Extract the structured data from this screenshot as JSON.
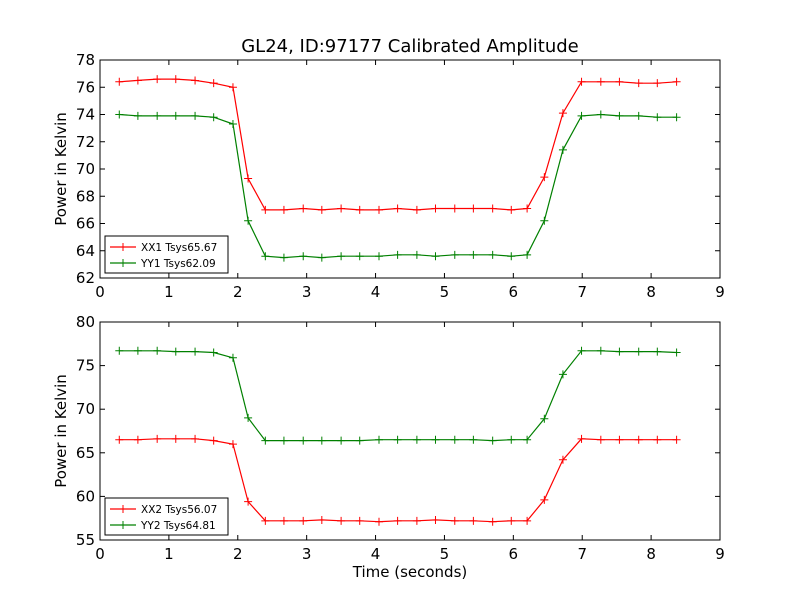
{
  "figure": {
    "title": "GL24, ID:97177 Calibrated Amplitude"
  },
  "chart_data": [
    {
      "type": "line",
      "ylabel": "Power in Kelvin",
      "xlabel": "",
      "xlim": [
        0,
        9
      ],
      "ylim": [
        62,
        78
      ],
      "xticks": [
        "0",
        "1",
        "2",
        "3",
        "4",
        "5",
        "6",
        "7",
        "8",
        "9"
      ],
      "yticks": [
        "62",
        "64",
        "66",
        "68",
        "70",
        "72",
        "74",
        "76",
        "78"
      ],
      "legend_position": "lower-left",
      "x": [
        0.28,
        0.55,
        0.83,
        1.1,
        1.38,
        1.65,
        1.93,
        2.15,
        2.4,
        2.67,
        2.95,
        3.22,
        3.5,
        3.77,
        4.05,
        4.32,
        4.6,
        4.87,
        5.15,
        5.42,
        5.7,
        5.97,
        6.2,
        6.45,
        6.72,
        6.99,
        7.27,
        7.54,
        7.82,
        8.09,
        8.37
      ],
      "series": [
        {
          "name": "XX1 Tsys65.67",
          "color": "#ff0000",
          "values": [
            76.4,
            76.5,
            76.6,
            76.6,
            76.5,
            76.3,
            76.0,
            69.3,
            67.0,
            67.0,
            67.1,
            67.0,
            67.1,
            67.0,
            67.0,
            67.1,
            67.0,
            67.1,
            67.1,
            67.1,
            67.1,
            67.0,
            67.1,
            69.4,
            74.1,
            76.4,
            76.4,
            76.4,
            76.3,
            76.3,
            76.4
          ]
        },
        {
          "name": "YY1 Tsys62.09",
          "color": "#008000",
          "values": [
            74.0,
            73.9,
            73.9,
            73.9,
            73.9,
            73.8,
            73.3,
            66.2,
            63.6,
            63.5,
            63.6,
            63.5,
            63.6,
            63.6,
            63.6,
            63.7,
            63.7,
            63.6,
            63.7,
            63.7,
            63.7,
            63.6,
            63.7,
            66.2,
            71.4,
            73.9,
            74.0,
            73.9,
            73.9,
            73.8,
            73.8
          ]
        }
      ]
    },
    {
      "type": "line",
      "ylabel": "Power in Kelvin",
      "xlabel": "Time (seconds)",
      "xlim": [
        0,
        9
      ],
      "ylim": [
        55,
        80
      ],
      "xticks": [
        "0",
        "1",
        "2",
        "3",
        "4",
        "5",
        "6",
        "7",
        "8",
        "9"
      ],
      "yticks": [
        "55",
        "60",
        "65",
        "70",
        "75",
        "80"
      ],
      "legend_position": "lower-left",
      "x": [
        0.28,
        0.55,
        0.83,
        1.1,
        1.38,
        1.65,
        1.93,
        2.15,
        2.4,
        2.67,
        2.95,
        3.22,
        3.5,
        3.77,
        4.05,
        4.32,
        4.6,
        4.87,
        5.15,
        5.42,
        5.7,
        5.97,
        6.2,
        6.45,
        6.72,
        6.99,
        7.27,
        7.54,
        7.82,
        8.09,
        8.37
      ],
      "series": [
        {
          "name": "XX2 Tsys56.07",
          "color": "#ff0000",
          "values": [
            66.5,
            66.5,
            66.6,
            66.6,
            66.6,
            66.4,
            66.0,
            59.4,
            57.2,
            57.2,
            57.2,
            57.3,
            57.2,
            57.2,
            57.1,
            57.2,
            57.2,
            57.3,
            57.2,
            57.2,
            57.1,
            57.2,
            57.2,
            59.6,
            64.2,
            66.6,
            66.5,
            66.5,
            66.5,
            66.5,
            66.5
          ]
        },
        {
          "name": "YY2 Tsys64.81",
          "color": "#008000",
          "values": [
            76.7,
            76.7,
            76.7,
            76.6,
            76.6,
            76.5,
            75.9,
            69.0,
            66.4,
            66.4,
            66.4,
            66.4,
            66.4,
            66.4,
            66.5,
            66.5,
            66.5,
            66.5,
            66.5,
            66.5,
            66.4,
            66.5,
            66.5,
            68.9,
            74.0,
            76.7,
            76.7,
            76.6,
            76.6,
            76.6,
            76.5
          ]
        }
      ]
    }
  ]
}
